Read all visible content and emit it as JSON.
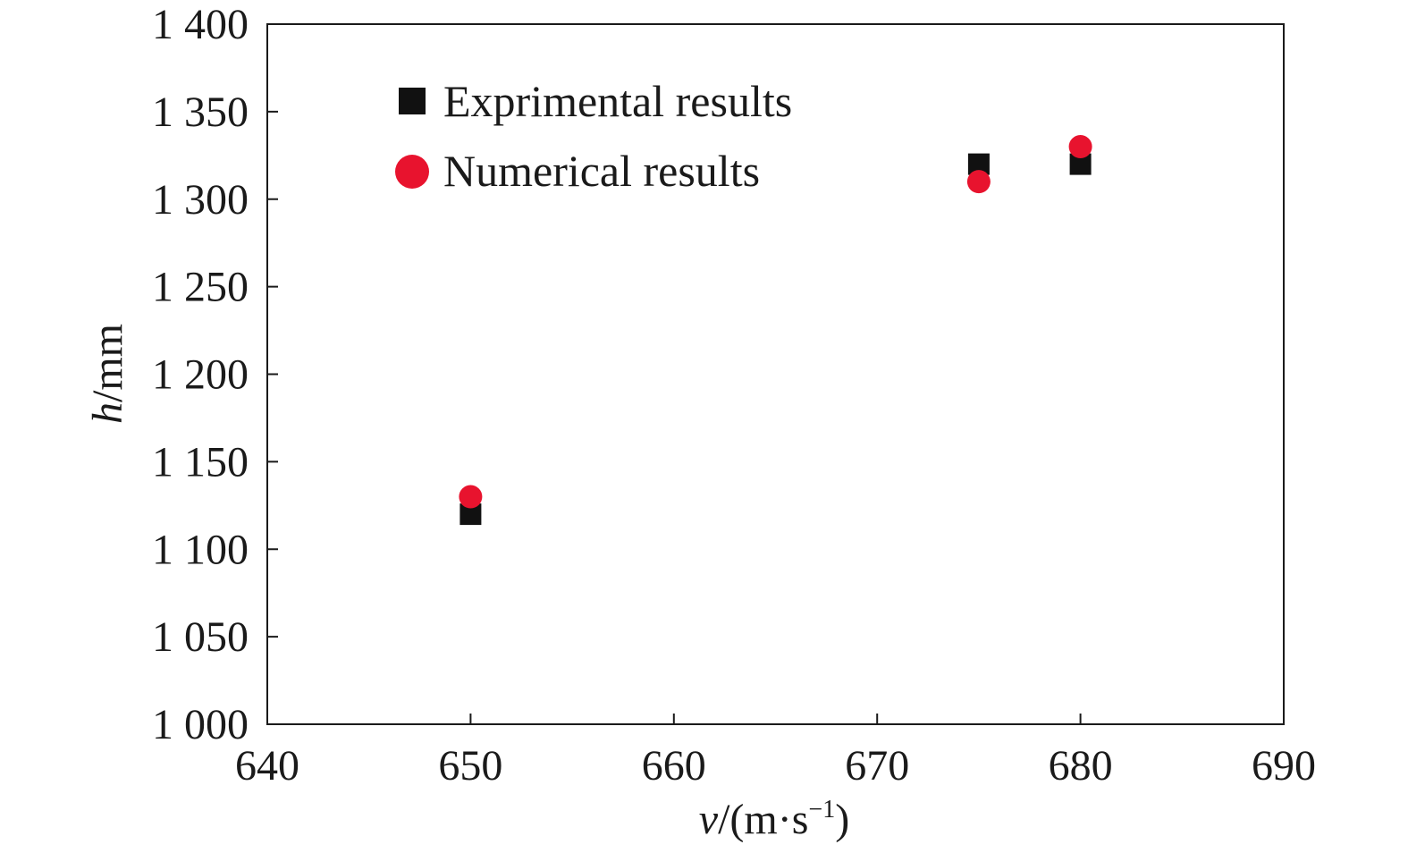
{
  "chart_data": {
    "type": "scatter",
    "xlim": [
      640,
      690
    ],
    "ylim": [
      1000,
      1400
    ],
    "xticks": [
      640,
      650,
      660,
      670,
      680,
      690
    ],
    "yticks": [
      1000,
      1050,
      1100,
      1150,
      1200,
      1250,
      1300,
      1350,
      1400
    ],
    "xtick_labels": [
      "640",
      "650",
      "660",
      "670",
      "680",
      "690"
    ],
    "ytick_labels": [
      "1 000",
      "1 050",
      "1 100",
      "1 150",
      "1 200",
      "1 250",
      "1 300",
      "1 350",
      "1 400"
    ],
    "xlabel": {
      "var": "v",
      "unit_open": "/(m·s",
      "sup": "−1",
      "unit_close": ")"
    },
    "ylabel": {
      "var": "h",
      "unit": "/mm"
    },
    "grid": false,
    "legend_position": "top-left",
    "series": [
      {
        "name": "Exprimental results",
        "marker": "square",
        "color": "#111111",
        "points": [
          {
            "x": 650,
            "y": 1120
          },
          {
            "x": 675,
            "y": 1320
          },
          {
            "x": 680,
            "y": 1320
          }
        ]
      },
      {
        "name": "Numerical results",
        "marker": "circle",
        "color": "#e8132e",
        "points": [
          {
            "x": 650,
            "y": 1130
          },
          {
            "x": 675,
            "y": 1310
          },
          {
            "x": 680,
            "y": 1330
          }
        ]
      }
    ]
  }
}
